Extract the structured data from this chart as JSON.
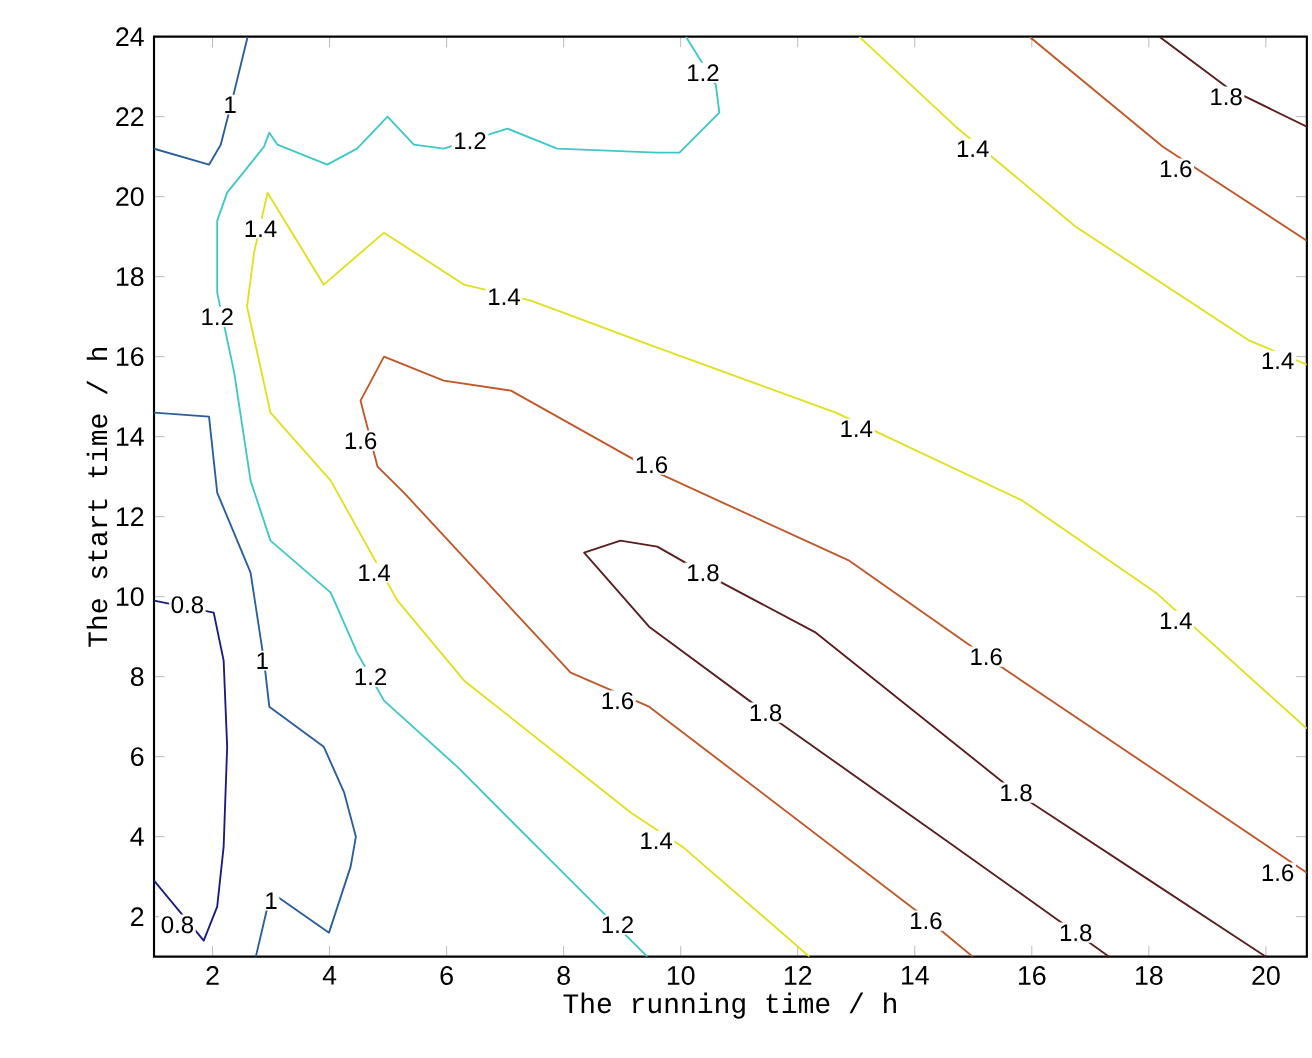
{
  "chart_data": {
    "type": "line",
    "xlabel": "The running time / h",
    "ylabel": "The start time / h",
    "xlim": [
      1,
      20.7
    ],
    "ylim": [
      1,
      24
    ],
    "xticks": [
      2,
      4,
      6,
      8,
      10,
      12,
      14,
      16,
      18,
      20
    ],
    "yticks": [
      2,
      4,
      6,
      8,
      10,
      12,
      14,
      16,
      18,
      20,
      22,
      24
    ],
    "marker": "none",
    "line_style": "solid",
    "series": [
      {
        "color": "#1c1c80",
        "x": [
          1,
          1.85,
          2.08,
          2.19,
          2.25,
          2.19,
          2.02,
          1
        ],
        "values": [
          2.9,
          1.4,
          2.25,
          3.75,
          6.25,
          8.4,
          9.6,
          9.9
        ]
      },
      {
        "color": "#2a5f9e",
        "x": [
          1,
          1.94,
          2.14,
          2.35,
          2.6
        ],
        "values": [
          21.2,
          20.8,
          21.3,
          22.5,
          24
        ]
      },
      {
        "color": "#2a5f9e",
        "x": [
          1,
          1.94,
          2.08,
          2.65,
          2.88,
          2.97,
          3.9,
          4.25,
          4.45,
          4.36,
          3.99,
          3.11,
          2.94,
          2.74
        ],
        "values": [
          14.6,
          14.5,
          12.6,
          10.6,
          8.4,
          7.25,
          6.25,
          5.1,
          4,
          3.25,
          1.6,
          2.5,
          2.25,
          1
        ]
      },
      {
        "color": "#40c8c8",
        "x": [
          9.43,
          8.57,
          6.18,
          4.93,
          4.47,
          4.02,
          2.99,
          2.65,
          2.37,
          2.08,
          2.08,
          2.25,
          2.88,
          2.97,
          3.11,
          3.96,
          4.47,
          4.99,
          5.44,
          5.95,
          7.04,
          7.89,
          9.6,
          9.98,
          10.66,
          10.6,
          10.09
        ],
        "values": [
          1,
          2.25,
          5.75,
          7.4,
          8.6,
          10.1,
          11.4,
          12.9,
          15.6,
          17.6,
          19.4,
          20.1,
          21.25,
          21.6,
          21.3,
          20.8,
          21.2,
          22,
          21.3,
          21.2,
          21.7,
          21.2,
          21.1,
          21.1,
          22.1,
          22.8,
          24
        ]
      },
      {
        "color": "#e0e020",
        "x": [
          12.2,
          10.03,
          9.15,
          6.3,
          5.16,
          4.02,
          2.99,
          2.59,
          2.71,
          2.94,
          3.9,
          4.93,
          6.3,
          7.44,
          9.46,
          12.65,
          15.84,
          18.12,
          20.7
        ],
        "values": [
          1,
          3.75,
          4.6,
          7.9,
          9.9,
          12.9,
          14.6,
          17.25,
          18.6,
          20.1,
          17.8,
          19.1,
          17.8,
          17.4,
          16.3,
          14.6,
          12.4,
          10.1,
          6.7
        ]
      },
      {
        "color": "#e0e020",
        "x": [
          13.05,
          14.7,
          16.75,
          19.72,
          20.7
        ],
        "values": [
          24,
          21.75,
          19.25,
          16.4,
          15.8
        ]
      },
      {
        "color": "#c0582a",
        "x": [
          14.99,
          14.25,
          9.46,
          8.12,
          5.27,
          4.82,
          4.53,
          4.93,
          5.95,
          7.1,
          9.6,
          12.88,
          15.22,
          20.7
        ],
        "values": [
          1,
          1.9,
          7.25,
          8.1,
          12.6,
          13.25,
          14.9,
          16,
          15.4,
          15.15,
          13.1,
          10.9,
          8.5,
          3.1
        ]
      },
      {
        "color": "#c0582a",
        "x": [
          15.96,
          18.24,
          20.7
        ],
        "values": [
          24,
          21.25,
          18.9
        ]
      },
      {
        "color": "#5c1e1e",
        "x": [
          17.32,
          16.75,
          14.5,
          11.45,
          9.46,
          8.35,
          8.97,
          9.6,
          10.38,
          12.31,
          15.73,
          18,
          20
        ],
        "values": [
          1,
          1.6,
          3.94,
          7.1,
          9.25,
          11.1,
          11.4,
          11.25,
          10.6,
          9.1,
          5.1,
          2.92,
          1
        ]
      },
      {
        "color": "#5c1e1e",
        "x": [
          18.18,
          19.37,
          20.7
        ],
        "values": [
          24,
          22.7,
          21.75
        ]
      }
    ],
    "annotations": [
      {
        "text": "1",
        "x": 2.3,
        "y": 22.3
      },
      {
        "text": "1",
        "x": 2.85,
        "y": 8.4
      },
      {
        "text": "1",
        "x": 3.0,
        "y": 2.4
      },
      {
        "text": "0.8",
        "x": 1.57,
        "y": 9.8
      },
      {
        "text": "0.8",
        "x": 1.4,
        "y": 1.8
      },
      {
        "text": "1.2",
        "x": 6.4,
        "y": 21.4
      },
      {
        "text": "1.2",
        "x": 10.38,
        "y": 23.1
      },
      {
        "text": "1.2",
        "x": 2.08,
        "y": 17.0
      },
      {
        "text": "1.2",
        "x": 4.7,
        "y": 8.0
      },
      {
        "text": "1.2",
        "x": 8.92,
        "y": 1.8
      },
      {
        "text": "1.4",
        "x": 2.82,
        "y": 19.2
      },
      {
        "text": "1.4",
        "x": 6.98,
        "y": 17.5
      },
      {
        "text": "1.4",
        "x": 13.0,
        "y": 14.2
      },
      {
        "text": "1.4",
        "x": 18.46,
        "y": 9.4
      },
      {
        "text": "1.4",
        "x": 20.2,
        "y": 15.9
      },
      {
        "text": "1.4",
        "x": 4.76,
        "y": 10.6
      },
      {
        "text": "1.4",
        "x": 9.58,
        "y": 3.9
      },
      {
        "text": "1.4",
        "x": 14.99,
        "y": 21.2
      },
      {
        "text": "1.6",
        "x": 4.53,
        "y": 13.9
      },
      {
        "text": "1.6",
        "x": 9.5,
        "y": 13.3
      },
      {
        "text": "1.6",
        "x": 8.92,
        "y": 7.4
      },
      {
        "text": "1.6",
        "x": 15.22,
        "y": 8.5
      },
      {
        "text": "1.6",
        "x": 20.2,
        "y": 3.1
      },
      {
        "text": "1.6",
        "x": 14.19,
        "y": 1.9
      },
      {
        "text": "1.6",
        "x": 18.46,
        "y": 20.7
      },
      {
        "text": "1.8",
        "x": 19.32,
        "y": 22.5
      },
      {
        "text": "1.8",
        "x": 10.38,
        "y": 10.6
      },
      {
        "text": "1.8",
        "x": 11.45,
        "y": 7.1
      },
      {
        "text": "1.8",
        "x": 15.73,
        "y": 5.1
      },
      {
        "text": "1.8",
        "x": 16.75,
        "y": 1.6
      }
    ]
  }
}
